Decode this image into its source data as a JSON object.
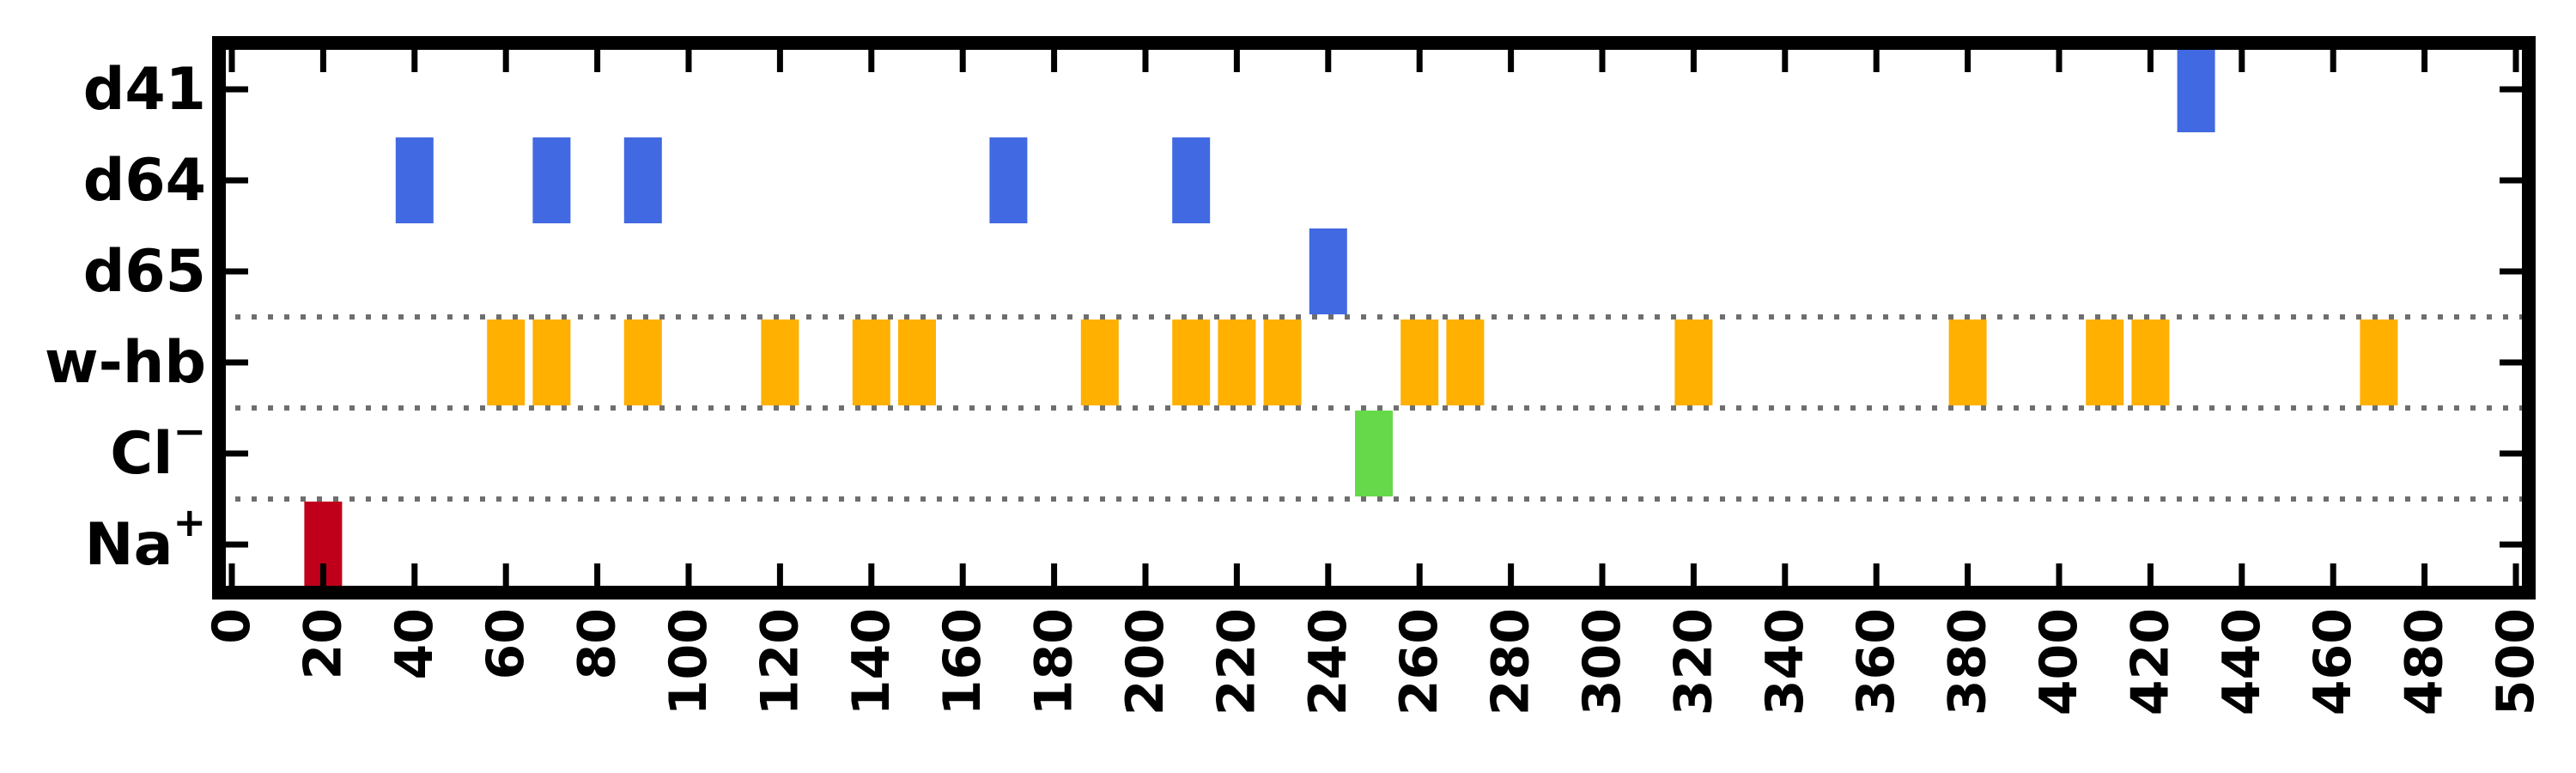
{
  "chart_data": {
    "type": "event-raster",
    "xlim": [
      0,
      500
    ],
    "xticks": [
      0,
      20,
      40,
      60,
      80,
      100,
      120,
      140,
      160,
      180,
      200,
      220,
      240,
      260,
      280,
      300,
      320,
      340,
      360,
      380,
      400,
      420,
      440,
      460,
      480,
      500
    ],
    "xtick_labels": [
      "0",
      "20",
      "40",
      "60",
      "80",
      "100",
      "120",
      "140",
      "160",
      "180",
      "200",
      "220",
      "240",
      "260",
      "280",
      "300",
      "320",
      "340",
      "360",
      "380",
      "400",
      "420",
      "440",
      "460",
      "480",
      "500"
    ],
    "rows": [
      {
        "label_main": "d41",
        "label_sup": "",
        "color": "#4169E1",
        "events": [
          430
        ]
      },
      {
        "label_main": "d64",
        "label_sup": "",
        "color": "#4169E1",
        "events": [
          40,
          70,
          90,
          170,
          210
        ]
      },
      {
        "label_main": "d65",
        "label_sup": "",
        "color": "#4169E1",
        "events": [
          240
        ]
      },
      {
        "label_main": "w-hb",
        "label_sup": "",
        "color": "#FFB000",
        "events": [
          60,
          70,
          90,
          120,
          140,
          150,
          190,
          210,
          220,
          230,
          260,
          270,
          320,
          380,
          410,
          420,
          470
        ]
      },
      {
        "label_main": "Cl",
        "label_sup": "−",
        "color": "#66D94A",
        "events": [
          250
        ]
      },
      {
        "label_main": "Na",
        "label_sup": "+",
        "color": "#C0001A",
        "events": [
          20
        ]
      }
    ],
    "separators_after_rows": [
      2,
      3,
      4
    ],
    "grid": false
  }
}
